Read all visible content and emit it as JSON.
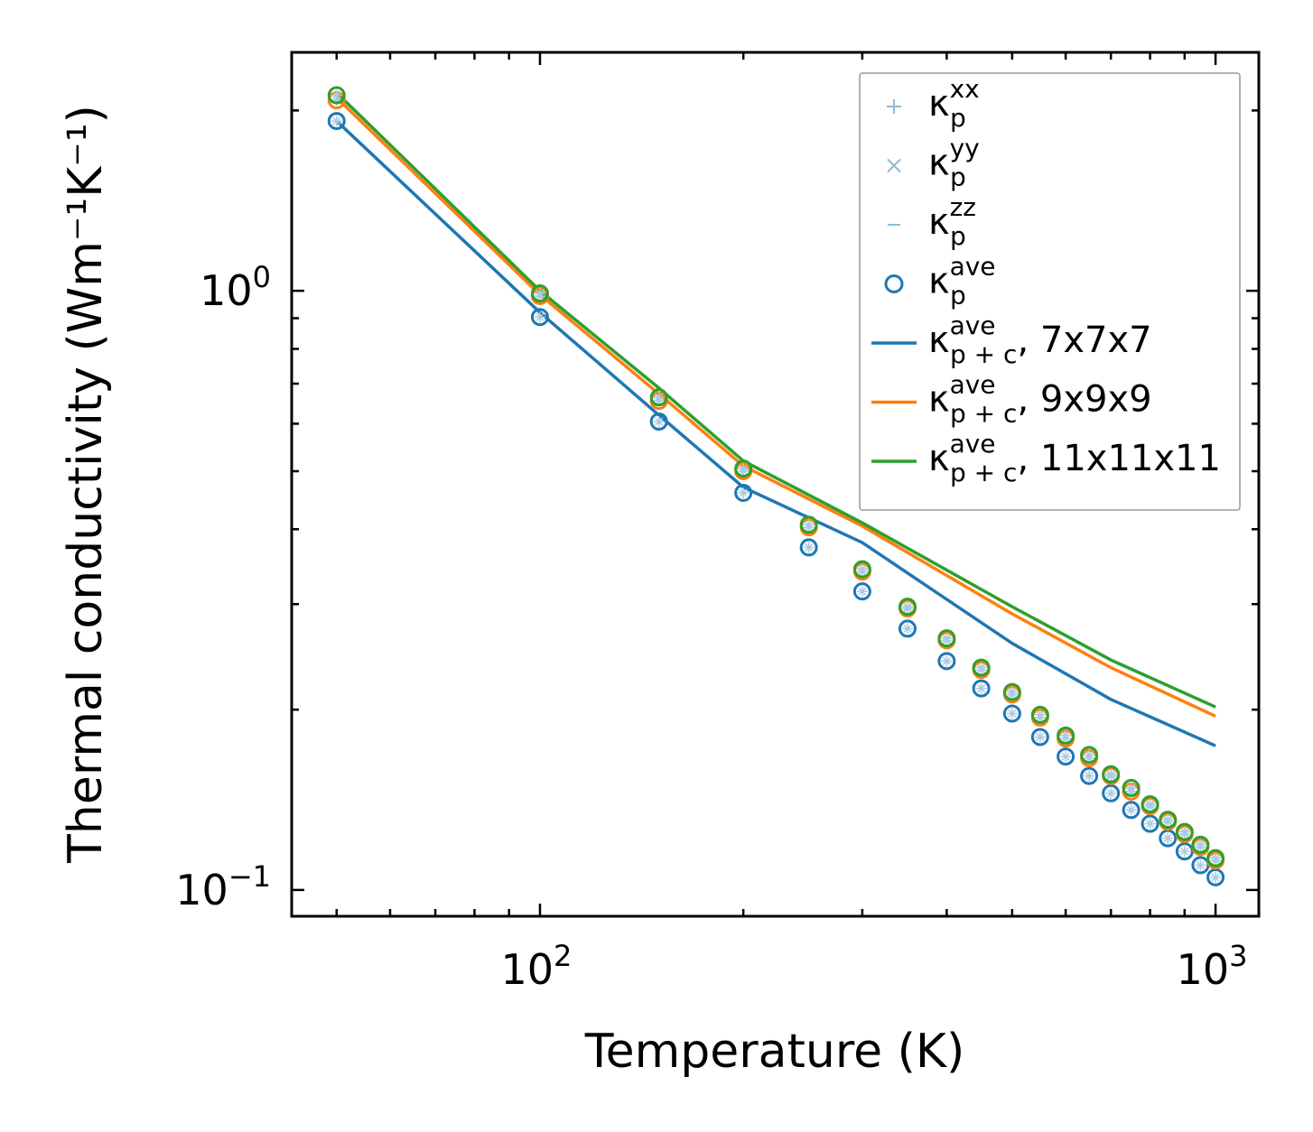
{
  "chart_data": {
    "type": "line",
    "xscale": "log",
    "yscale": "log",
    "xlabel": "Temperature (K)",
    "ylabel": "Thermal conductivity (Wm⁻¹K⁻¹)",
    "xlim": [
      42.9,
      1159
    ],
    "ylim": [
      0.0904,
      2.5
    ],
    "xticks": [
      {
        "value": 100,
        "base": "10",
        "exp": "2"
      },
      {
        "value": 1000,
        "base": "10",
        "exp": "3"
      }
    ],
    "yticks": [
      {
        "value": 0.1,
        "base": "10",
        "exp": "−1"
      },
      {
        "value": 1,
        "base": "10",
        "exp": "0"
      }
    ],
    "grid": false,
    "legend_position": "top-right",
    "x_points": [
      50,
      100,
      150,
      200,
      250,
      300,
      350,
      400,
      450,
      500,
      550,
      600,
      650,
      700,
      750,
      800,
      850,
      900,
      950,
      1000
    ],
    "series": [
      {
        "name": "kp_7x7x7",
        "kind": "points",
        "color": "#1f77b4",
        "values": [
          1.92,
          0.904,
          0.605,
          0.46,
          0.373,
          0.315,
          0.273,
          0.241,
          0.217,
          0.197,
          0.18,
          0.167,
          0.155,
          0.145,
          0.136,
          0.129,
          0.122,
          0.116,
          0.11,
          0.105
        ]
      },
      {
        "name": "kp_9x9x9",
        "kind": "points",
        "color": "#ff7f0e",
        "values": [
          2.08,
          0.98,
          0.655,
          0.5,
          0.403,
          0.34,
          0.295,
          0.261,
          0.233,
          0.212,
          0.194,
          0.179,
          0.166,
          0.155,
          0.146,
          0.138,
          0.13,
          0.124,
          0.118,
          0.112
        ]
      },
      {
        "name": "kp_11x11x11",
        "kind": "points",
        "color": "#2ca02c",
        "values": [
          2.12,
          0.99,
          0.664,
          0.505,
          0.407,
          0.343,
          0.297,
          0.263,
          0.235,
          0.214,
          0.196,
          0.181,
          0.168,
          0.156,
          0.148,
          0.139,
          0.131,
          0.125,
          0.119,
          0.113
        ]
      },
      {
        "name": "kappa_p+c ave, 7x7x7",
        "kind": "line",
        "color": "#1f77b4",
        "x": [
          50,
          100,
          150,
          200,
          300,
          500,
          700,
          1000
        ],
        "values": [
          1.92,
          0.92,
          0.62,
          0.47,
          0.38,
          0.258,
          0.208,
          0.174
        ]
      },
      {
        "name": "kappa_p+c ave, 9x9x9",
        "kind": "line",
        "color": "#ff7f0e",
        "x": [
          50,
          100,
          150,
          200,
          300,
          500,
          700,
          1000
        ],
        "values": [
          2.1,
          0.985,
          0.673,
          0.51,
          0.405,
          0.289,
          0.235,
          0.195
        ]
      },
      {
        "name": "kappa_p+c ave, 11x11x11",
        "kind": "line",
        "color": "#2ca02c",
        "x": [
          50,
          100,
          150,
          200,
          300,
          500,
          700,
          1000
        ],
        "values": [
          2.14,
          1.0,
          0.688,
          0.52,
          0.41,
          0.297,
          0.242,
          0.202
        ]
      }
    ],
    "legend": [
      {
        "kind": "plus",
        "base": "κ",
        "sup": "xx",
        "sub": "p",
        "suffix": "",
        "color": "#8fbbd9"
      },
      {
        "kind": "cross",
        "base": "κ",
        "sup": "yy",
        "sub": "p",
        "suffix": "",
        "color": "#8fbbd9"
      },
      {
        "kind": "dash",
        "base": "κ",
        "sup": "zz",
        "sub": "p",
        "suffix": "",
        "color": "#8fbbd9"
      },
      {
        "kind": "circle",
        "base": "κ",
        "sup": "ave",
        "sub": "p",
        "suffix": "",
        "color": "#1f77b4"
      },
      {
        "kind": "line",
        "base": "κ",
        "sup": "ave",
        "sub": "p + c",
        "suffix": ", 7x7x7",
        "color": "#1f77b4"
      },
      {
        "kind": "line",
        "base": "κ",
        "sup": "ave",
        "sub": "p + c",
        "suffix": ", 9x9x9",
        "color": "#ff7f0e"
      },
      {
        "kind": "line",
        "base": "κ",
        "sup": "ave",
        "sub": "p + c",
        "suffix": ", 11x11x11",
        "color": "#2ca02c"
      }
    ]
  }
}
